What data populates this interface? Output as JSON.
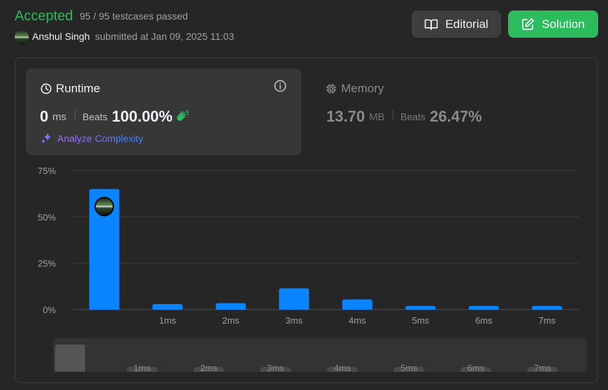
{
  "header": {
    "status": "Accepted",
    "testcases": "95 / 95 testcases passed",
    "user_name": "Anshul Singh",
    "submitted_text": "submitted at Jan 09, 2025 11:03",
    "editorial_label": "Editorial",
    "solution_label": "Solution"
  },
  "runtime": {
    "title": "Runtime",
    "value": "0",
    "unit": "ms",
    "beats_label": "Beats",
    "beats_value": "100.00%",
    "analyze_label": "Analyze Complexity"
  },
  "memory": {
    "title": "Memory",
    "value": "13.70",
    "unit": "MB",
    "beats_label": "Beats",
    "beats_value": "26.47%"
  },
  "colors": {
    "accepted": "#2cbb5d",
    "bar": "#0a84ff",
    "solution_button": "#2cbb5d"
  },
  "chart_data": {
    "type": "bar",
    "categories": [
      "",
      "1ms",
      "2ms",
      "3ms",
      "4ms",
      "5ms",
      "6ms",
      "7ms"
    ],
    "values": [
      65,
      3,
      3.5,
      11.5,
      5.5,
      2,
      2,
      2
    ],
    "y_ticks": [
      "0%",
      "25%",
      "50%",
      "75%"
    ],
    "ylim": [
      0,
      75
    ],
    "grid": true,
    "highlight_index": 0
  },
  "minimap": {
    "labels": [
      "1ms",
      "2ms",
      "3ms",
      "4ms",
      "5ms",
      "6ms",
      "7ms"
    ]
  }
}
